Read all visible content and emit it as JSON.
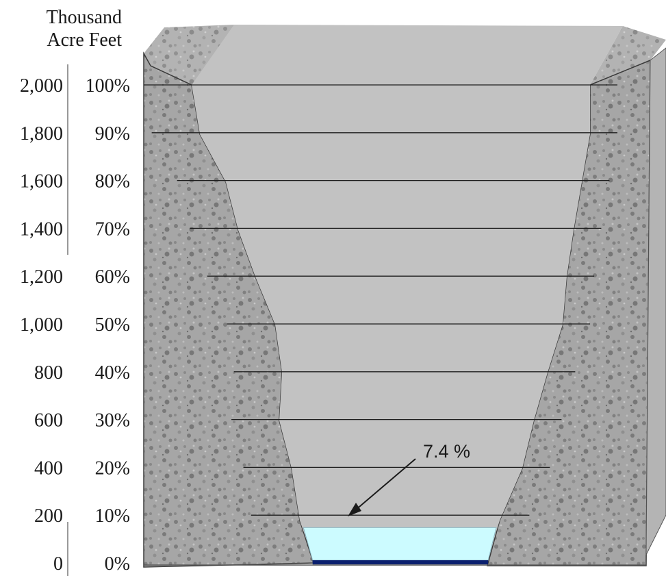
{
  "chart_data": {
    "type": "area",
    "unit_label_line1": "Thousand",
    "unit_label_line2": "Acre Feet",
    "capacity_ticks": [
      "2,000",
      "1,800",
      "1,600",
      "1,400",
      "1,200",
      "1,000",
      "800",
      "600",
      "400",
      "200",
      "0"
    ],
    "percent_ticks": [
      "100%",
      "90%",
      "80%",
      "70%",
      "60%",
      "50%",
      "40%",
      "30%",
      "20%",
      "10%",
      "0%"
    ],
    "capacity_range": [
      0,
      2000
    ],
    "percent_range": [
      0,
      100
    ],
    "current_storage_percent": 7.4,
    "annotation": "7.4 %",
    "grid": true,
    "colors": {
      "water": "#ccfbff",
      "water_bottom": "#0a1f6e",
      "reservoir_fill": "#c2c2c2",
      "rock": "#a6a6a6",
      "rock_speckle": "#7d7d7d",
      "grid_line": "#1e1e1e"
    }
  }
}
